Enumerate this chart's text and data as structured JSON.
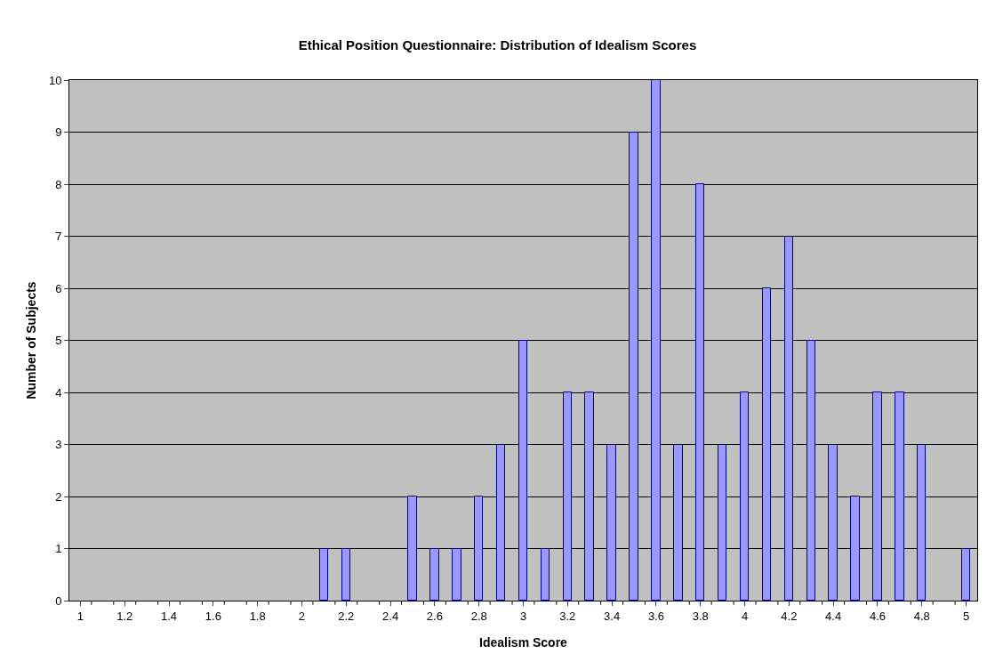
{
  "chart_data": {
    "type": "bar",
    "title": "Ethical Position Questionnaire: Distribution of Idealism Scores",
    "xlabel": "Idealism Score",
    "ylabel": "Number of Subjects",
    "categories": [
      "1",
      null,
      "1.2",
      null,
      "1.4",
      null,
      "1.6",
      null,
      "1.8",
      null,
      "2",
      null,
      "2.2",
      null,
      "2.4",
      null,
      "2.6",
      null,
      "2.8",
      null,
      "3",
      null,
      "3.2",
      null,
      "3.4",
      null,
      "3.6",
      null,
      "3.8",
      null,
      "4",
      null,
      "4.2",
      null,
      "4.4",
      null,
      "4.6",
      null,
      "4.8",
      null,
      "5"
    ],
    "values": [
      0,
      0,
      0,
      0,
      0,
      0,
      0,
      0,
      0,
      0,
      0,
      1,
      1,
      0,
      0,
      2,
      1,
      1,
      2,
      3,
      5,
      1,
      4,
      4,
      3,
      9,
      10,
      3,
      8,
      3,
      4,
      6,
      7,
      5,
      3,
      2,
      4,
      4,
      3,
      0,
      1
    ],
    "color": "#9999ff",
    "ylim": [
      0,
      10
    ],
    "yticks": [
      0,
      1,
      2,
      3,
      4,
      5,
      6,
      7,
      8,
      9,
      10
    ],
    "grid": "y",
    "legend": false
  }
}
